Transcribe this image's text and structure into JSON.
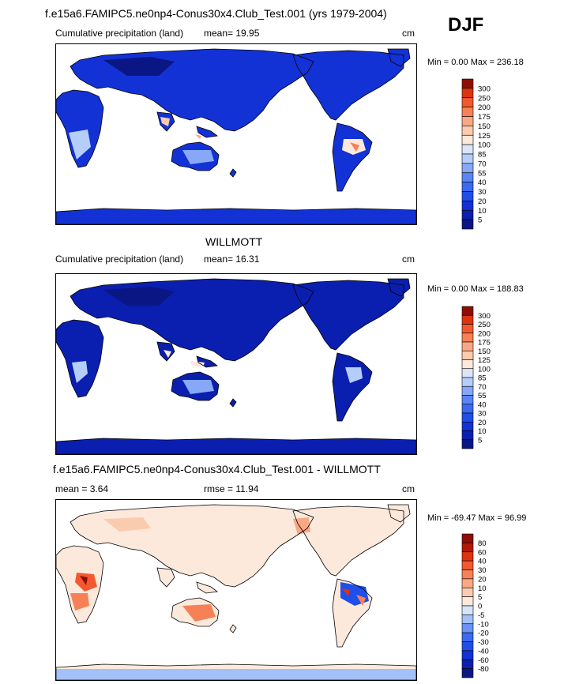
{
  "season": "DJF",
  "panels": [
    {
      "title": "f.e15a6.FAMIPC5.ne0np4-Conus30x4.Club_Test.001 (yrs 1979-2004)",
      "left_label": "Cumulative precipitation (land)",
      "mid_label": "mean=  19.95",
      "unit": "cm",
      "minmax": "Min =    0.00 Max = 236.18"
    },
    {
      "title": "WILLMOTT",
      "left_label": "Cumulative precipitation (land)",
      "mid_label": "mean=  16.31",
      "unit": "cm",
      "minmax": "Min =    0.00 Max = 188.83"
    },
    {
      "title": "f.e15a6.FAMIPC5.ne0np4-Conus30x4.Club_Test.001 - WILLMOTT",
      "left_label": "mean =   3.64",
      "mid_label": "rmse =  11.94",
      "unit": "cm",
      "minmax": "Min = -69.47 Max =  96.99"
    }
  ],
  "chart_data": [
    {
      "type": "heatmap",
      "title": "f.e15a6.FAMIPC5.ne0np4-Conus30x4.Club_Test.001 (yrs 1979-2004)",
      "subtitle": "Cumulative precipitation (land)",
      "mean": 19.95,
      "min": 0.0,
      "max": 236.18,
      "unit": "cm",
      "levels": [
        5,
        10,
        20,
        30,
        40,
        55,
        70,
        85,
        100,
        125,
        150,
        175,
        200,
        250,
        300
      ],
      "colors": [
        "#0a1683",
        "#0a1fb0",
        "#1232d6",
        "#1f4fe8",
        "#3a6af0",
        "#5a86f5",
        "#86a8f7",
        "#b5cdf9",
        "#d9e6fa",
        "#fde9dc",
        "#fbcbb0",
        "#f9a784",
        "#f68157",
        "#f3592f",
        "#de330f",
        "#8e0e05"
      ],
      "dominant_land_color": "#1232d6",
      "land_tone": "wet"
    },
    {
      "type": "heatmap",
      "title": "WILLMOTT",
      "subtitle": "Cumulative precipitation (land)",
      "mean": 16.31,
      "min": 0.0,
      "max": 188.83,
      "unit": "cm",
      "levels": [
        5,
        10,
        20,
        30,
        40,
        55,
        70,
        85,
        100,
        125,
        150,
        175,
        200,
        250,
        300
      ],
      "colors": [
        "#0a1683",
        "#0a1fb0",
        "#1232d6",
        "#1f4fe8",
        "#3a6af0",
        "#5a86f5",
        "#86a8f7",
        "#b5cdf9",
        "#d9e6fa",
        "#fde9dc",
        "#fbcbb0",
        "#f9a784",
        "#f68157",
        "#f3592f",
        "#de330f",
        "#8e0e05"
      ],
      "dominant_land_color": "#0a1fb0",
      "land_tone": "wet"
    },
    {
      "type": "heatmap",
      "title": "f.e15a6.FAMIPC5.ne0np4-Conus30x4.Club_Test.001 - WILLMOTT",
      "mean": 3.64,
      "rmse": 11.94,
      "min": -69.47,
      "max": 96.99,
      "unit": "cm",
      "levels": [
        -80,
        -60,
        -40,
        -30,
        -20,
        -10,
        -5,
        0,
        5,
        10,
        20,
        30,
        40,
        60,
        80
      ],
      "colors": [
        "#0a1683",
        "#0a1fb0",
        "#1232d6",
        "#1f4fe8",
        "#3a6af0",
        "#6a93f5",
        "#a4c0f8",
        "#d6e4fa",
        "#fde9dc",
        "#fbcbb0",
        "#f9a784",
        "#f68157",
        "#f3592f",
        "#de330f",
        "#b01808",
        "#8e0e05"
      ],
      "dominant_land_color": "#fde9dc",
      "land_tone": "diff"
    }
  ]
}
